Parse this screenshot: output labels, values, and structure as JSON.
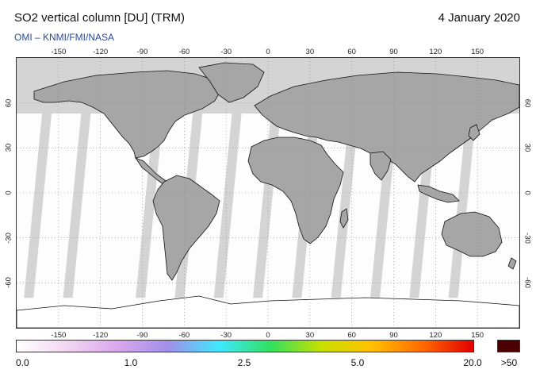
{
  "header": {
    "title": "SO2 vertical column [DU] (TRM)",
    "date": "4 January 2020",
    "credit": "OMI  –  KNMI/FMI/NASA"
  },
  "map": {
    "projection": "equirectangular",
    "lon_ticks": [
      "-150",
      "-120",
      "-90",
      "-60",
      "-30",
      "0",
      "30",
      "60",
      "90",
      "120",
      "150"
    ],
    "lat_ticks": [
      "60",
      "30",
      "0",
      "-30",
      "-60"
    ],
    "land_color": "#a6a6a6",
    "no_data_color": "#d4d4d4",
    "background_color": "#ffffff",
    "gridline_style": "dotted"
  },
  "colorbar": {
    "labels": [
      "0.0",
      "1.0",
      "2.5",
      "5.0",
      "20.0"
    ],
    "overflow_label": ">50",
    "overflow_color": "#4a0000",
    "gradient_colors": [
      "#ffffff",
      "#f2d6f2",
      "#d9a6ec",
      "#a090e8",
      "#3fe8ff",
      "#30e060",
      "#c8e000",
      "#ffc000",
      "#ff6a00",
      "#e00000"
    ]
  }
}
